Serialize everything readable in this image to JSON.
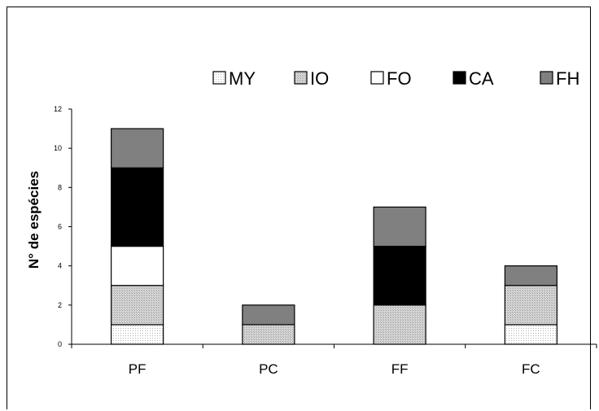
{
  "chart_data": {
    "type": "bar",
    "stacked": true,
    "categories": [
      "PF",
      "PC",
      "FF",
      "FC"
    ],
    "series": [
      {
        "name": "MY",
        "values": [
          1,
          0,
          0,
          1
        ],
        "pattern": "fine-dots"
      },
      {
        "name": "IO",
        "values": [
          2,
          1,
          2,
          2
        ],
        "pattern": "gray-dots"
      },
      {
        "name": "FO",
        "values": [
          2,
          0,
          0,
          0
        ],
        "pattern": "white"
      },
      {
        "name": "CA",
        "values": [
          4,
          0,
          3,
          0
        ],
        "pattern": "black"
      },
      {
        "name": "FH",
        "values": [
          2,
          1,
          2,
          1
        ],
        "pattern": "gray"
      }
    ],
    "title": "",
    "xlabel": "",
    "ylabel": "N° de espécies",
    "ylim": [
      0,
      12
    ],
    "yticks": [
      "0",
      "2",
      "4",
      "6",
      "8",
      "10",
      "12"
    ],
    "grid": false,
    "legend_position": "top"
  },
  "colors": {
    "fine-dots": "#f2f2f2",
    "gray-dots": "#c8c8c8",
    "white": "#ffffff",
    "black": "#000000",
    "gray": "#808080"
  }
}
